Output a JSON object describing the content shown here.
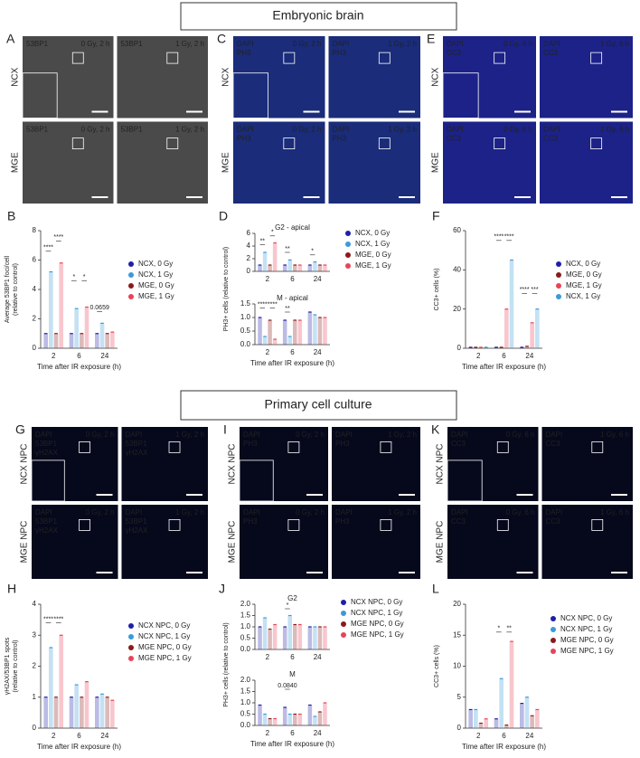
{
  "headers": [
    "Embryonic brain",
    "Primary cell culture"
  ],
  "image_panels": [
    {
      "letter": "A",
      "rows": [
        "NCX",
        "MGE"
      ],
      "stains": [
        {
          "text": "53BP1",
          "color": "#ffffff"
        }
      ],
      "conditions": [
        "0 Gy, 2 h",
        "1 Gy, 2 h"
      ],
      "background": "#4a4a4a"
    },
    {
      "letter": "C",
      "rows": [
        "NCX",
        "MGE"
      ],
      "stains": [
        {
          "text": "DAPI",
          "color": "#5577ff"
        },
        {
          "text": "PH3",
          "color": "#5ce65c"
        }
      ],
      "conditions": [
        "0 Gy, 2 h",
        "1 Gy, 2 h"
      ],
      "background": "#1a2c7a"
    },
    {
      "letter": "E",
      "rows": [
        "NCX",
        "MGE"
      ],
      "stains": [
        {
          "text": "DAPI",
          "color": "#5577ff"
        },
        {
          "text": "CC3",
          "color": "#ff3d8a"
        }
      ],
      "conditions": [
        "0 Gy, 6 h",
        "1 Gy, 6 h"
      ],
      "background": "#1c2288"
    },
    {
      "letter": "G",
      "rows": [
        "NCX NPC",
        "MGE NPC"
      ],
      "stains": [
        {
          "text": "DAPI",
          "color": "#5577ff"
        },
        {
          "text": "53BP1",
          "color": "#ff8a3d"
        },
        {
          "text": "γH2AX",
          "color": "#7dff5a"
        }
      ],
      "conditions": [
        "0 Gy, 2 h",
        "1 Gy, 2 h"
      ],
      "background": "#06081c"
    },
    {
      "letter": "I",
      "rows": [
        "NCX NPC",
        "MGE NPC"
      ],
      "stains": [
        {
          "text": "DAPI",
          "color": "#5577ff"
        },
        {
          "text": "PH3",
          "color": "#ff8a3d"
        }
      ],
      "conditions": [
        "0 Gy, 2 h",
        "1 Gy, 2 h"
      ],
      "background": "#06081c"
    },
    {
      "letter": "K",
      "rows": [
        "NCX NPC",
        "MGE NPC"
      ],
      "stains": [
        {
          "text": "DAPI",
          "color": "#5577ff"
        },
        {
          "text": "CC3",
          "color": "#7dff5a"
        }
      ],
      "conditions": [
        "0 Gy, 6 h",
        "1 Gy, 6 h"
      ],
      "background": "#06081c"
    }
  ],
  "chart_data": [
    {
      "letter": "B",
      "type": "bar",
      "ylabel": [
        "Average 53BP1 foci/cell",
        "(relative to control)"
      ],
      "xlabel": "Time after IR exposure (h)",
      "categories": [
        "2",
        "6",
        "24"
      ],
      "subplots": [
        {
          "ylim": [
            0,
            8
          ],
          "yticks": [
            0,
            2,
            4,
            6,
            8
          ],
          "series": [
            {
              "name": "NCX, 0 Gy",
              "color": "#1f1fa8",
              "values": [
                1,
                1,
                1
              ]
            },
            {
              "name": "NCX, 1 Gy",
              "color": "#3b9ad9",
              "values": [
                5.2,
                2.7,
                1.7
              ]
            },
            {
              "name": "MGE, 0 Gy",
              "color": "#8b1a1a",
              "values": [
                1,
                1,
                1
              ]
            },
            {
              "name": "MGE, 1 Gy",
              "color": "#e8435a",
              "values": [
                5.8,
                2.8,
                1.1
              ]
            }
          ],
          "annotations": [
            {
              "text": "****",
              "category": "2",
              "series": [
                "NCX, 0 Gy",
                "NCX, 1 Gy"
              ],
              "y": 6.6
            },
            {
              "text": "****",
              "category": "2",
              "series": [
                "MGE, 0 Gy",
                "MGE, 1 Gy"
              ],
              "y": 7.3
            },
            {
              "text": "*",
              "category": "6",
              "series": [
                "NCX, 0 Gy",
                "NCX, 1 Gy"
              ],
              "y": 4.6
            },
            {
              "text": "*",
              "category": "6",
              "series": [
                "MGE, 0 Gy",
                "MGE, 1 Gy"
              ],
              "y": 4.6
            },
            {
              "text": "0.0659",
              "category": "24",
              "series": [
                "NCX, 0 Gy",
                "NCX, 1 Gy"
              ],
              "y": 2.5
            }
          ]
        }
      ]
    },
    {
      "letter": "D",
      "type": "bar",
      "ylabel": [
        "PH3+ cells (relative to control)"
      ],
      "xlabel": "Time after IR exposure (h)",
      "categories": [
        "2",
        "6",
        "24"
      ],
      "subplots": [
        {
          "title": "G2 - apical",
          "ylim": [
            0,
            6
          ],
          "yticks": [
            0,
            2,
            4,
            6
          ],
          "series": [
            {
              "name": "NCX, 0 Gy",
              "color": "#1f1fa8",
              "values": [
                1,
                1,
                1
              ]
            },
            {
              "name": "NCX, 1 Gy",
              "color": "#3b9ad9",
              "values": [
                3,
                1.8,
                1.5
              ]
            },
            {
              "name": "MGE, 0 Gy",
              "color": "#8b1a1a",
              "values": [
                1,
                1,
                1
              ]
            },
            {
              "name": "MGE, 1 Gy",
              "color": "#e8435a",
              "values": [
                4.5,
                1,
                1
              ]
            }
          ],
          "annotations": [
            {
              "text": "**",
              "category": "2",
              "series": [
                "NCX, 0 Gy",
                "NCX, 1 Gy"
              ],
              "y": 4.2
            },
            {
              "text": "*",
              "category": "2",
              "series": [
                "MGE, 0 Gy",
                "MGE, 1 Gy"
              ],
              "y": 5.6
            },
            {
              "text": "**",
              "category": "6",
              "series": [
                "NCX, 0 Gy",
                "NCX, 1 Gy"
              ],
              "y": 3
            },
            {
              "text": "*",
              "category": "24",
              "series": [
                "NCX, 0 Gy",
                "NCX, 1 Gy"
              ],
              "y": 2.6
            }
          ]
        },
        {
          "title": "M - apical",
          "ylim": [
            0,
            1.5
          ],
          "yticks": [
            {
              "value": 0,
              "label": "0.0"
            },
            0.5,
            {
              "value": 1,
              "label": "1.0"
            },
            1.5
          ],
          "series": [
            {
              "name": "NCX, 0 Gy",
              "color": "#1f1fa8",
              "values": [
                1,
                0.9,
                1.2
              ]
            },
            {
              "name": "NCX, 1 Gy",
              "color": "#3b9ad9",
              "values": [
                0.3,
                0.3,
                1.1
              ]
            },
            {
              "name": "MGE, 0 Gy",
              "color": "#8b1a1a",
              "values": [
                0.9,
                0.9,
                1
              ]
            },
            {
              "name": "MGE, 1 Gy",
              "color": "#e8435a",
              "values": [
                0.2,
                0.9,
                1
              ]
            }
          ],
          "annotations": [
            {
              "text": "****",
              "category": "2",
              "series": [
                "NCX, 0 Gy",
                "NCX, 1 Gy"
              ],
              "y": 1.35
            },
            {
              "text": "****",
              "category": "2",
              "series": [
                "MGE, 0 Gy",
                "MGE, 1 Gy"
              ],
              "y": 1.35
            },
            {
              "text": "**",
              "category": "6",
              "series": [
                "NCX, 0 Gy",
                "NCX, 1 Gy"
              ],
              "y": 1.2
            }
          ]
        }
      ]
    },
    {
      "letter": "F",
      "type": "bar",
      "ylabel": [
        "CC3+ cells (%)"
      ],
      "xlabel": "Time after IR exposure (h)",
      "categories": [
        "2",
        "6",
        "24"
      ],
      "subplots": [
        {
          "ylim": [
            0,
            60
          ],
          "yticks": [
            0,
            20,
            40,
            60
          ],
          "series": [
            {
              "name": "NCX, 0 Gy",
              "color": "#1f1fa8",
              "values": [
                0.5,
                0.5,
                0.5
              ]
            },
            {
              "name": "MGE, 0 Gy",
              "color": "#8b1a1a",
              "values": [
                0.5,
                0.5,
                1
              ]
            },
            {
              "name": "MGE, 1 Gy",
              "color": "#e8435a",
              "values": [
                0.5,
                20,
                13
              ]
            },
            {
              "name": "NCX, 1 Gy",
              "color": "#3b9ad9",
              "values": [
                0.5,
                45,
                20
              ]
            }
          ],
          "annotations": [
            {
              "text": "****",
              "category": "6",
              "series": [
                "NCX, 0 Gy",
                "MGE, 0 Gy"
              ],
              "y": 55
            },
            {
              "text": "****",
              "category": "6",
              "series": [
                "MGE, 1 Gy",
                "NCX, 1 Gy"
              ],
              "y": 55
            },
            {
              "text": "****",
              "category": "24",
              "series": [
                "NCX, 0 Gy",
                "MGE, 0 Gy"
              ],
              "y": 28
            },
            {
              "text": "***",
              "category": "24",
              "series": [
                "MGE, 1 Gy",
                "NCX, 1 Gy"
              ],
              "y": 28
            }
          ]
        }
      ]
    },
    {
      "letter": "H",
      "type": "bar",
      "ylabel": [
        "γH2AX/53BP1 spots",
        "(relative to control)"
      ],
      "xlabel": "Time after IR exposure (h)",
      "categories": [
        "2",
        "6",
        "24"
      ],
      "subplots": [
        {
          "ylim": [
            0,
            4
          ],
          "yticks": [
            0,
            1,
            2,
            3,
            4
          ],
          "series": [
            {
              "name": "NCX NPC, 0 Gy",
              "color": "#1f1fa8",
              "values": [
                1,
                1,
                1
              ]
            },
            {
              "name": "NCX NPC, 1 Gy",
              "color": "#3b9ad9",
              "values": [
                2.6,
                1.4,
                1.1
              ]
            },
            {
              "name": "MGE NPC, 0 Gy",
              "color": "#8b1a1a",
              "values": [
                1,
                1,
                1
              ]
            },
            {
              "name": "MGE NPC, 1 Gy",
              "color": "#e8435a",
              "values": [
                3,
                1.5,
                0.9
              ]
            }
          ],
          "annotations": [
            {
              "text": "****",
              "category": "2",
              "series": [
                "NCX NPC, 0 Gy",
                "NCX NPC, 1 Gy"
              ],
              "y": 3.4
            },
            {
              "text": "****",
              "category": "2",
              "series": [
                "MGE NPC, 0 Gy",
                "MGE NPC, 1 Gy"
              ],
              "y": 3.4
            }
          ]
        }
      ]
    },
    {
      "letter": "J",
      "type": "bar",
      "ylabel": [
        "PH3+ cells (relative to control)"
      ],
      "xlabel": "Time after IR exposure (h)",
      "categories": [
        "2",
        "6",
        "24"
      ],
      "subplots": [
        {
          "title": "G2",
          "ylim": [
            0,
            2
          ],
          "yticks": [
            {
              "value": 0,
              "label": "0.0"
            },
            0.5,
            {
              "value": 1,
              "label": "1.0"
            },
            1.5,
            {
              "value": 2,
              "label": "2.0"
            }
          ],
          "series": [
            {
              "name": "NCX NPC, 0 Gy",
              "color": "#1f1fa8",
              "values": [
                1,
                1,
                1
              ]
            },
            {
              "name": "NCX NPC, 1 Gy",
              "color": "#3b9ad9",
              "values": [
                1.4,
                1.5,
                1
              ]
            },
            {
              "name": "MGE NPC, 0 Gy",
              "color": "#8b1a1a",
              "values": [
                0.9,
                1.1,
                1
              ]
            },
            {
              "name": "MGE NPC, 1 Gy",
              "color": "#e8435a",
              "values": [
                1.1,
                1.1,
                1
              ]
            }
          ],
          "annotations": [
            {
              "text": "*",
              "category": "6",
              "series": [
                "NCX NPC, 0 Gy",
                "NCX NPC, 1 Gy"
              ],
              "y": 1.8
            }
          ]
        },
        {
          "title": "M",
          "ylim": [
            0,
            2
          ],
          "yticks": [
            {
              "value": 0,
              "label": "0.0"
            },
            0.5,
            {
              "value": 1,
              "label": "1.0"
            },
            1.5,
            {
              "value": 2,
              "label": "2.0"
            }
          ],
          "series": [
            {
              "name": "NCX NPC, 0 Gy",
              "color": "#1f1fa8",
              "values": [
                0.9,
                0.8,
                0.9
              ]
            },
            {
              "name": "NCX NPC, 1 Gy",
              "color": "#3b9ad9",
              "values": [
                0.5,
                0.5,
                0.4
              ]
            },
            {
              "name": "MGE NPC, 0 Gy",
              "color": "#8b1a1a",
              "values": [
                0.3,
                0.5,
                0.6
              ]
            },
            {
              "name": "MGE NPC, 1 Gy",
              "color": "#e8435a",
              "values": [
                0.3,
                0.5,
                1
              ]
            }
          ],
          "annotations": [
            {
              "text": "0.0840",
              "category": "6",
              "series": [
                "NCX NPC, 0 Gy",
                "NCX NPC, 1 Gy"
              ],
              "y": 1.6
            }
          ]
        }
      ]
    },
    {
      "letter": "L",
      "type": "bar",
      "ylabel": [
        "CC3+ cells (%)"
      ],
      "xlabel": "Time after IR exposure (h)",
      "categories": [
        "2",
        "6",
        "24"
      ],
      "subplots": [
        {
          "ylim": [
            0,
            20
          ],
          "yticks": [
            0,
            5,
            10,
            15,
            20
          ],
          "series": [
            {
              "name": "NCX NPC, 0 Gy",
              "color": "#1f1fa8",
              "values": [
                3,
                1.5,
                4
              ]
            },
            {
              "name": "NCX NPC, 1 Gy",
              "color": "#3b9ad9",
              "values": [
                3,
                8,
                5
              ]
            },
            {
              "name": "MGE NPC, 0 Gy",
              "color": "#8b1a1a",
              "values": [
                0.8,
                0.5,
                2
              ]
            },
            {
              "name": "MGE NPC, 1 Gy",
              "color": "#e8435a",
              "values": [
                1.5,
                14,
                3
              ]
            }
          ],
          "annotations": [
            {
              "text": "*",
              "category": "6",
              "series": [
                "NCX NPC, 0 Gy",
                "NCX NPC, 1 Gy"
              ],
              "y": 15.5
            },
            {
              "text": "**",
              "category": "6",
              "series": [
                "MGE NPC, 0 Gy",
                "MGE NPC, 1 Gy"
              ],
              "y": 15.5
            }
          ]
        }
      ]
    }
  ]
}
